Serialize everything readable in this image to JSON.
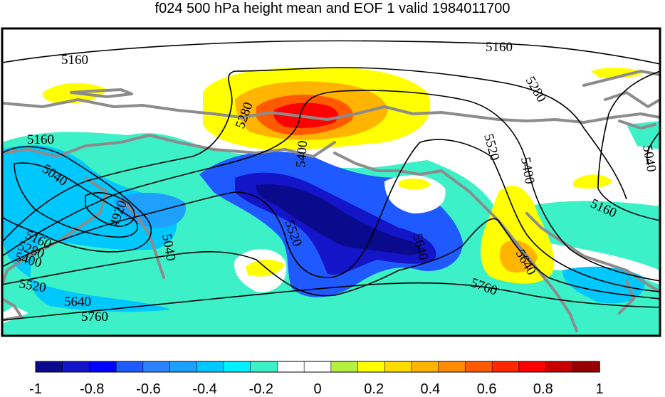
{
  "title": "f024 500 hPa height mean and EOF 1 valid 1984011700",
  "contour_labels": [
    "5160",
    "5160",
    "5160",
    "5040",
    "4920",
    "5040",
    "5160",
    "5280",
    "5400",
    "5520",
    "5640",
    "5760",
    "5280",
    "5400",
    "5520",
    "5640",
    "5280",
    "5400",
    "5520",
    "5640",
    "5760",
    "5160",
    "5040"
  ],
  "colorbar": {
    "ticks": [
      "-1",
      "-0.8",
      "-0.6",
      "-0.4",
      "-0.2",
      "0",
      "0.2",
      "0.4",
      "0.6",
      "0.8",
      "1"
    ],
    "colors": [
      "#0a0a8c",
      "#1414c8",
      "#0000ff",
      "#1e5aff",
      "#2d82ff",
      "#1ea0ff",
      "#00c8ff",
      "#00f0ff",
      "#3cf0c8",
      "#ffffff",
      "#ffffff",
      "#b4f03c",
      "#ffff00",
      "#ffdc00",
      "#ffb400",
      "#ff8c00",
      "#ff5a00",
      "#ff2800",
      "#ff0000",
      "#c80000",
      "#960000"
    ]
  },
  "colors": {
    "coast": "#8c8c8c",
    "contour": "#000000",
    "frame": "#000000"
  }
}
